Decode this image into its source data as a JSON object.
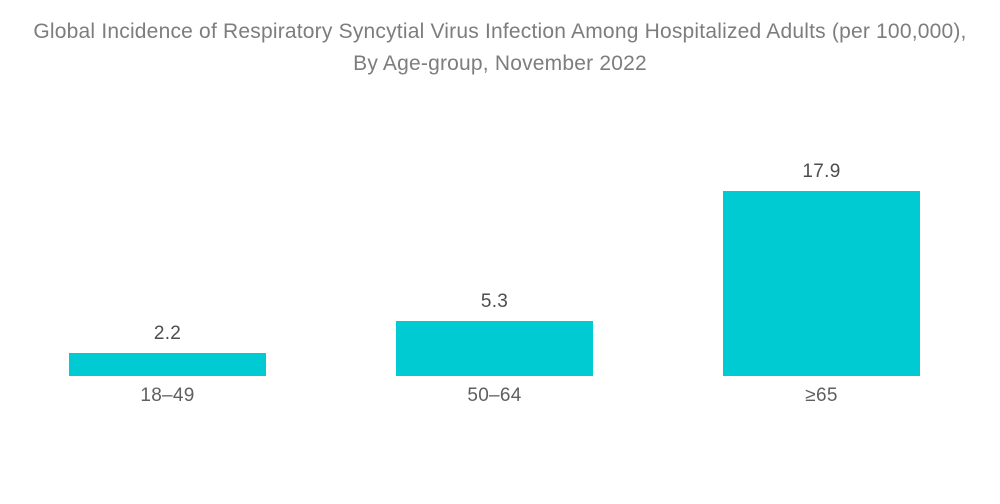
{
  "title": "Global Incidence of Respiratory Syncytial Virus Infection Among Hospitalized Adults (per 100,000), By Age-group, November 2022",
  "colors": {
    "background": "#FFFFFF",
    "bar": "#00CBD2",
    "title_text": "#7D7D7D",
    "value_text": "#4D4D4D",
    "category_text": "#5F5F5F"
  },
  "chart_data": {
    "type": "bar",
    "title": "Global Incidence of Respiratory Syncytial Virus Infection Among Hospitalized Adults (per 100,000), By Age-group, November 2022",
    "categories": [
      "18–49",
      "50–64",
      "≥65"
    ],
    "values": [
      2.2,
      5.3,
      17.9
    ],
    "value_labels": [
      "2.2",
      "5.3",
      "17.9"
    ],
    "xlabel": "",
    "ylabel": "",
    "ylim": [
      0,
      18
    ],
    "grid": false,
    "legend": false,
    "axes_visible": false,
    "bar_color": "#00CBD2",
    "orientation": "vertical"
  }
}
